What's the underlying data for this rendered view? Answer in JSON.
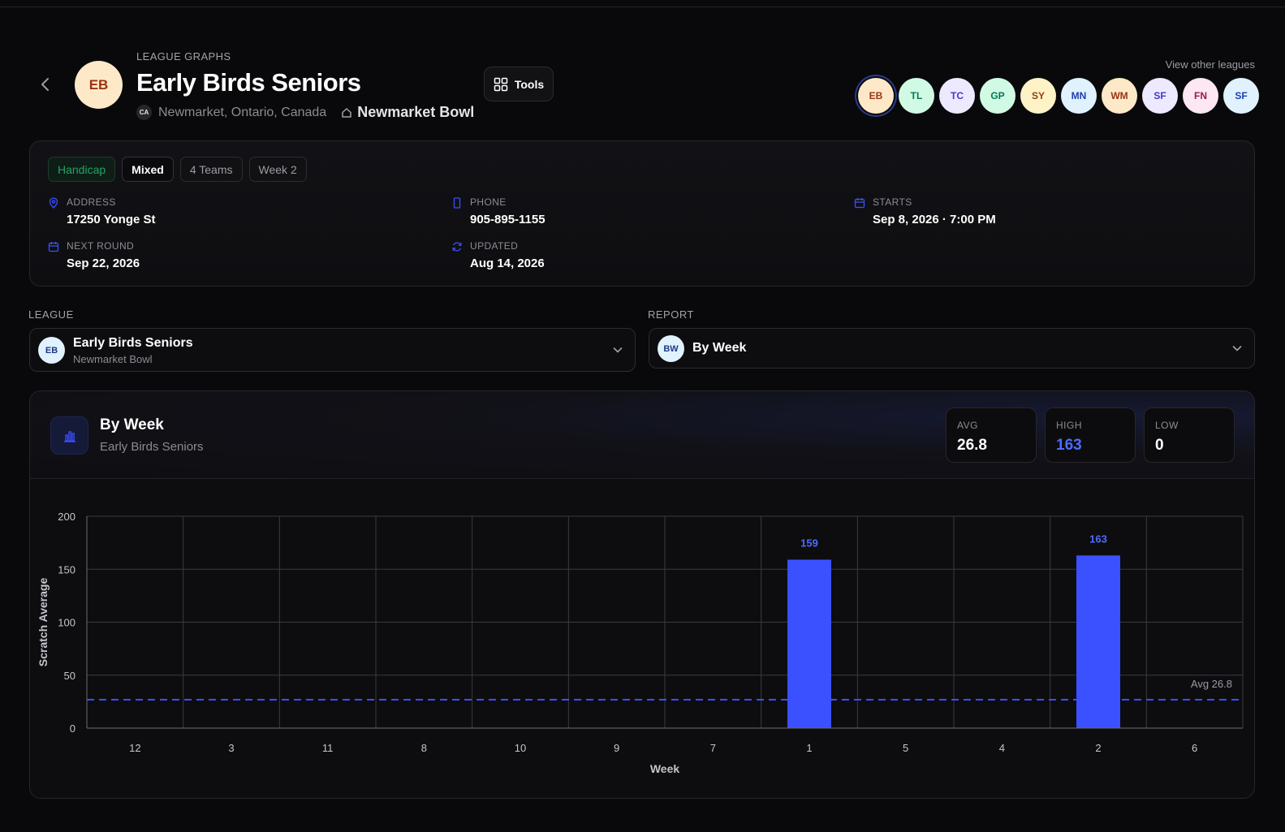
{
  "header": {
    "eyebrow": "LEAGUE GRAPHS",
    "title": "Early Birds Seniors",
    "avatar_initials": "EB",
    "country_code": "CA",
    "location": "Newmarket, Ontario, Canada",
    "venue": "Newmarket Bowl",
    "tools_label": "Tools",
    "view_other_label": "View other leagues"
  },
  "league_chips": [
    {
      "initials": "EB",
      "bg": "#fde9c8",
      "fg": "#9a3412",
      "active": true
    },
    {
      "initials": "TL",
      "bg": "#d1fae5",
      "fg": "#047857"
    },
    {
      "initials": "TC",
      "bg": "#ede9fe",
      "fg": "#4338ca"
    },
    {
      "initials": "GP",
      "bg": "#d1fae5",
      "fg": "#047857"
    },
    {
      "initials": "SY",
      "bg": "#fef3c7",
      "fg": "#92400e"
    },
    {
      "initials": "MN",
      "bg": "#e0f2fe",
      "fg": "#1e40af"
    },
    {
      "initials": "WM",
      "bg": "#fde9c8",
      "fg": "#9a3412"
    },
    {
      "initials": "SF",
      "bg": "#ede9fe",
      "fg": "#4338ca"
    },
    {
      "initials": "FN",
      "bg": "#fce7f3",
      "fg": "#9d174d"
    },
    {
      "initials": "SF",
      "bg": "#e0f2fe",
      "fg": "#1e40af"
    }
  ],
  "info": {
    "tags": [
      "Handicap",
      "Mixed",
      "4 Teams",
      "Week 2"
    ],
    "address_label": "ADDRESS",
    "address": "17250 Yonge St",
    "phone_label": "PHONE",
    "phone": "905-895-1155",
    "starts_label": "STARTS",
    "starts": "Sep 8, 2026 · 7:00 PM",
    "next_round_label": "NEXT ROUND",
    "next_round": "Sep 22, 2026",
    "updated_label": "UPDATED",
    "updated": "Aug 14, 2026"
  },
  "selectors": {
    "league_label": "LEAGUE",
    "league_avatar": "EB",
    "league_title": "Early Birds Seniors",
    "league_sub": "Newmarket Bowl",
    "report_label": "REPORT",
    "report_avatar": "BW",
    "report_title": "By Week"
  },
  "chart_card": {
    "title": "By Week",
    "subtitle": "Early Birds Seniors",
    "stats": [
      {
        "label": "AVG",
        "value": "26.8"
      },
      {
        "label": "HIGH",
        "value": "163"
      },
      {
        "label": "LOW",
        "value": "0"
      }
    ]
  },
  "colors": {
    "accent": "#3b50ff",
    "accent_text": "#4f6bff"
  },
  "chart_data": {
    "type": "bar",
    "categories": [
      "12",
      "3",
      "11",
      "8",
      "10",
      "9",
      "7",
      "1",
      "5",
      "4",
      "2",
      "6"
    ],
    "values": [
      0,
      0,
      0,
      0,
      0,
      0,
      0,
      159,
      0,
      0,
      163,
      0
    ],
    "xlabel": "Week",
    "ylabel": "Scratch Average",
    "ylim": [
      0,
      200
    ],
    "yticks": [
      0,
      50,
      100,
      150,
      200
    ],
    "avg_line": {
      "value": 26.8,
      "label": "Avg 26.8"
    },
    "grid": true
  }
}
